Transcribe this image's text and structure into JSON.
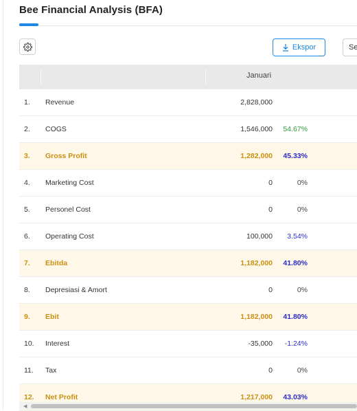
{
  "header": {
    "title": "Bee Financial Analysis (BFA)"
  },
  "toolbar": {
    "settings_icon": "gear-icon",
    "export_label": "Ekspor",
    "export_icon": "download-icon",
    "next_label": "Se"
  },
  "table": {
    "month_header": "Januari",
    "rows": [
      {
        "no": "1.",
        "label": "Revenue",
        "value": "2,828,000",
        "pct": "",
        "pct_color": "none",
        "highlight": false
      },
      {
        "no": "2.",
        "label": "COGS",
        "value": "1,546,000",
        "pct": "54.67%",
        "pct_color": "green",
        "highlight": false
      },
      {
        "no": "3.",
        "label": "Gross Profit",
        "value": "1,282,000",
        "pct": "45.33%",
        "pct_color": "blue",
        "highlight": true
      },
      {
        "no": "4.",
        "label": "Marketing Cost",
        "value": "0",
        "pct": "0%",
        "pct_color": "gray",
        "highlight": false
      },
      {
        "no": "5.",
        "label": "Personel Cost",
        "value": "0",
        "pct": "0%",
        "pct_color": "gray",
        "highlight": false
      },
      {
        "no": "6.",
        "label": "Operating Cost",
        "value": "100,000",
        "pct": "3.54%",
        "pct_color": "blue",
        "highlight": false
      },
      {
        "no": "7.",
        "label": "Ebitda",
        "value": "1,182,000",
        "pct": "41.80%",
        "pct_color": "blue",
        "highlight": true
      },
      {
        "no": "8.",
        "label": "Depresiasi & Amort",
        "value": "0",
        "pct": "0%",
        "pct_color": "gray",
        "highlight": false
      },
      {
        "no": "9.",
        "label": "Ebit",
        "value": "1,182,000",
        "pct": "41.80%",
        "pct_color": "blue",
        "highlight": true
      },
      {
        "no": "10.",
        "label": "Interest",
        "value": "-35,000",
        "pct": "-1.24%",
        "pct_color": "blue",
        "highlight": false
      },
      {
        "no": "11.",
        "label": "Tax",
        "value": "0",
        "pct": "0%",
        "pct_color": "gray",
        "highlight": false
      },
      {
        "no": "12.",
        "label": "Net Profit",
        "value": "1,217,000",
        "pct": "43.03%",
        "pct_color": "blue",
        "highlight": true
      }
    ]
  },
  "colors": {
    "accent": "#1e88e5",
    "highlight_bg": "#fff8e9",
    "highlight_text": "#c98f12",
    "pct_green": "#2e9a3a",
    "pct_blue": "#2f2fd0"
  }
}
